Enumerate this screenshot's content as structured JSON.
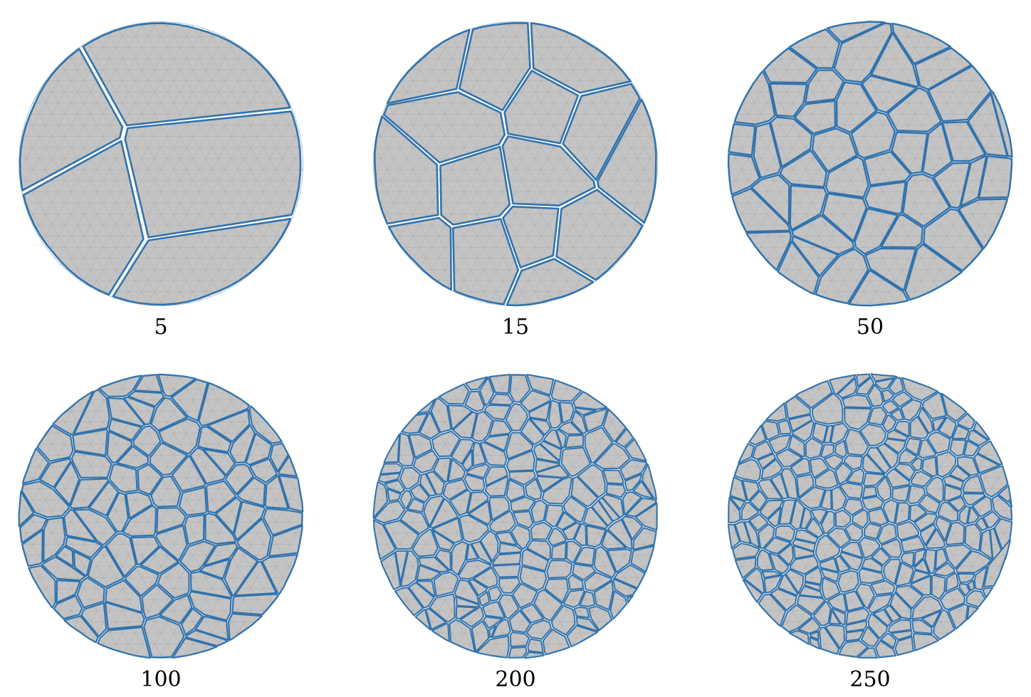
{
  "figure": {
    "panels": [
      {
        "label": "5"
      },
      {
        "label": "15"
      },
      {
        "label": "50"
      },
      {
        "label": "100"
      },
      {
        "label": "200"
      },
      {
        "label": "250"
      }
    ]
  },
  "colors": {
    "fragment_fill": "#c4c4c4",
    "fragment_stroke": "#2e72ae",
    "mesh_line": "#8d8d8d",
    "background": "#ffffff"
  }
}
